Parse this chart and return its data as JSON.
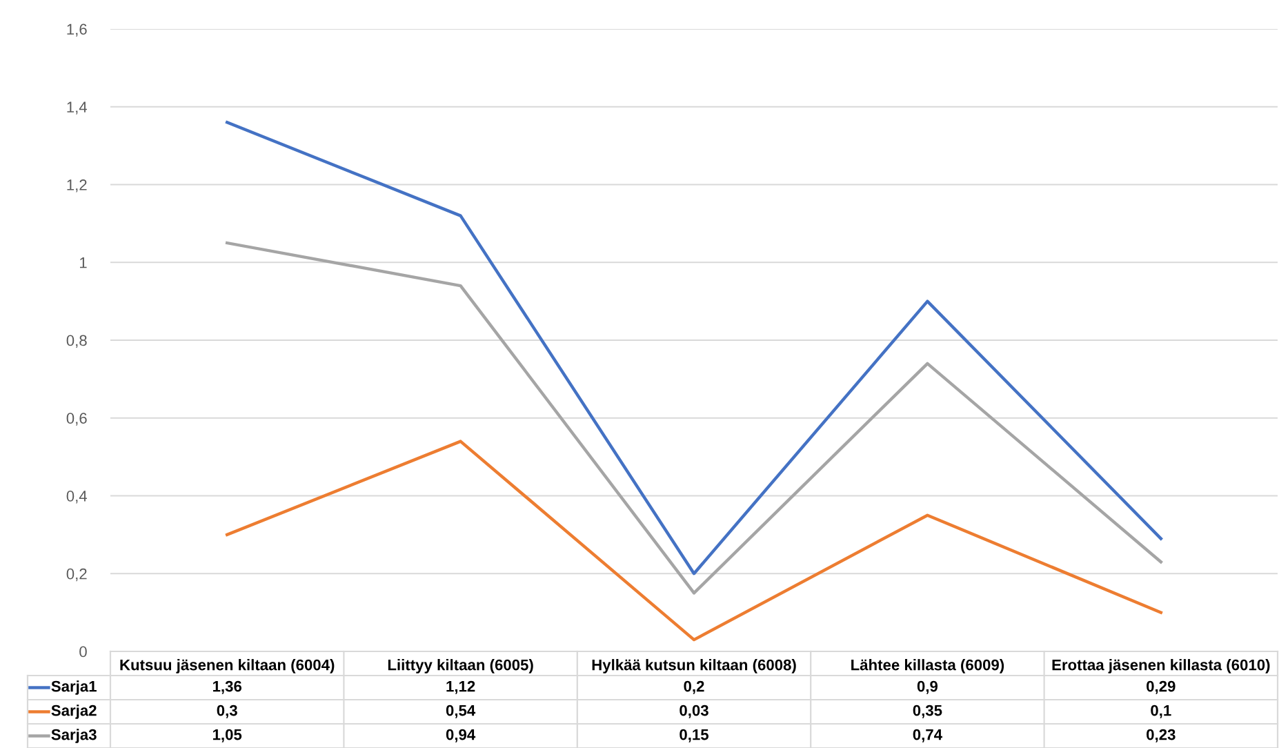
{
  "chart_data": {
    "type": "line",
    "categories": [
      "Kutsuu jäsenen kiltaan (6004)",
      "Liittyy kiltaan (6005)",
      "Hylkää kutsun kiltaan (6008)",
      "Lähtee killasta (6009)",
      "Erottaa jäsenen killasta (6010)"
    ],
    "series": [
      {
        "name": "Sarja1",
        "color": "#4472c4",
        "values": [
          1.36,
          1.12,
          0.2,
          0.9,
          0.29
        ],
        "value_labels": [
          "1,36",
          "1,12",
          "0,2",
          "0,9",
          "0,29"
        ]
      },
      {
        "name": "Sarja2",
        "color": "#ed7d31",
        "values": [
          0.3,
          0.54,
          0.03,
          0.35,
          0.1
        ],
        "value_labels": [
          "0,3",
          "0,54",
          "0,03",
          "0,35",
          "0,1"
        ]
      },
      {
        "name": "Sarja3",
        "color": "#a5a5a5",
        "values": [
          1.05,
          0.94,
          0.15,
          0.74,
          0.23
        ],
        "value_labels": [
          "1,05",
          "0,94",
          "0,15",
          "0,74",
          "0,23"
        ]
      }
    ],
    "ylim": [
      0,
      1.6
    ],
    "yticks": [
      0,
      {
        "value": 0.2,
        "label": "0,2"
      },
      {
        "value": 0.4,
        "label": "0,4"
      },
      {
        "value": 0.6,
        "label": "0,6"
      },
      {
        "value": 0.8,
        "label": "0,8"
      },
      1,
      {
        "value": 1.2,
        "label": "1,2"
      },
      {
        "value": 1.4,
        "label": "1,4"
      },
      {
        "value": 1.6,
        "label": "1,6"
      }
    ],
    "grid": "y",
    "marker": "none",
    "line_style": "solid",
    "legend": "bottom"
  }
}
